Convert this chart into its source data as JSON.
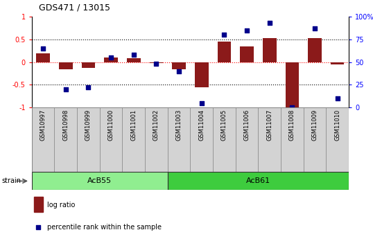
{
  "title": "GDS471 / 13015",
  "samples": [
    "GSM10997",
    "GSM10998",
    "GSM10999",
    "GSM11000",
    "GSM11001",
    "GSM11002",
    "GSM11003",
    "GSM11004",
    "GSM11005",
    "GSM11006",
    "GSM11007",
    "GSM11008",
    "GSM11009",
    "GSM11010"
  ],
  "log_ratio": [
    0.2,
    -0.15,
    -0.12,
    0.1,
    0.08,
    -0.02,
    -0.15,
    -0.55,
    0.45,
    0.35,
    0.53,
    -1.0,
    0.53,
    -0.05
  ],
  "percentile_rank": [
    65,
    20,
    22,
    55,
    58,
    48,
    40,
    5,
    80,
    85,
    93,
    0,
    87,
    10
  ],
  "bar_color": "#8B1A1A",
  "dot_color": "#00008B",
  "ylim_left": [
    -1,
    1
  ],
  "ylim_right": [
    0,
    100
  ],
  "yticks_left": [
    -1,
    -0.5,
    0,
    0.5,
    1
  ],
  "yticks_right": [
    0,
    25,
    50,
    75,
    100
  ],
  "yticklabels_right": [
    "0",
    "25",
    "50",
    "75",
    "100%"
  ],
  "strain_groups": [
    {
      "label": "AcB55",
      "start": 0,
      "end": 5,
      "color": "#90EE90"
    },
    {
      "label": "AcB61",
      "start": 6,
      "end": 13,
      "color": "#3ECC3E"
    }
  ],
  "strain_label": "strain",
  "legend_bar_label": "log ratio",
  "legend_dot_label": "percentile rank within the sample",
  "background_color": "#ffffff",
  "label_bg_color": "#d3d3d3"
}
